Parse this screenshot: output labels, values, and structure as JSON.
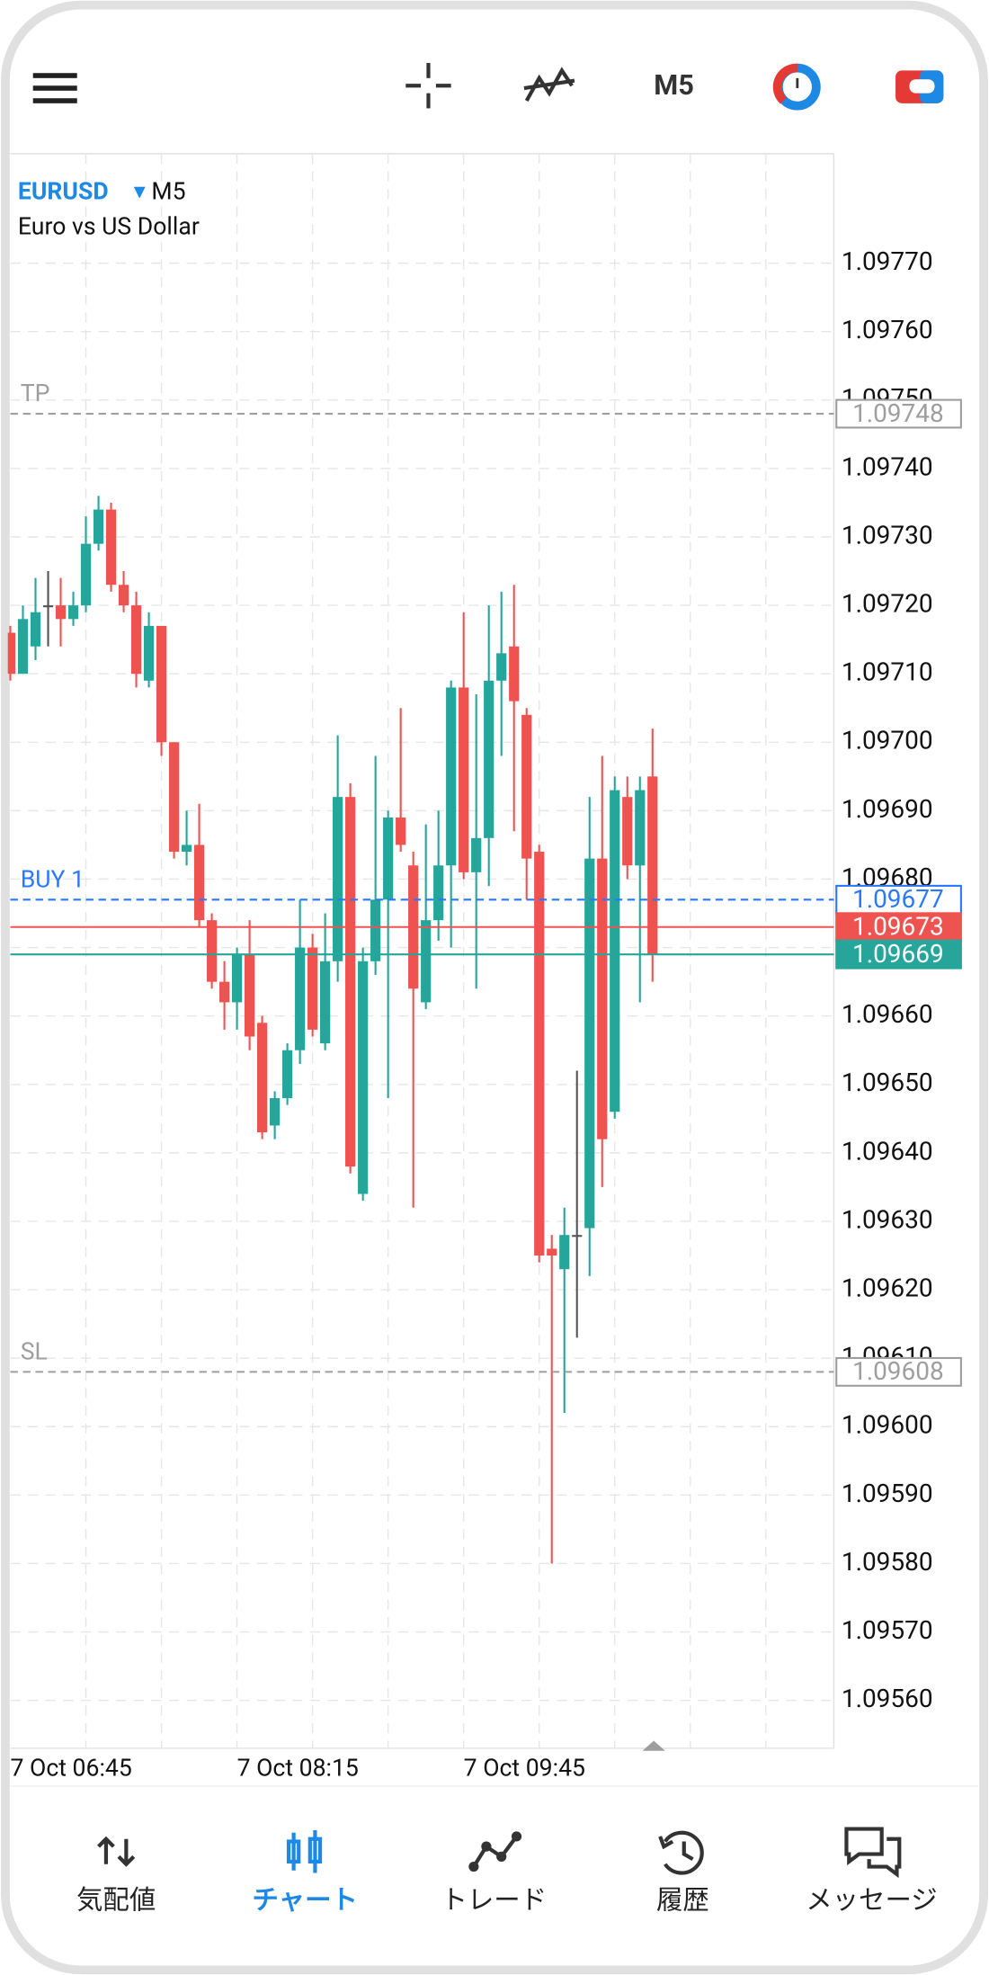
{
  "toolbar": {
    "timeframe": "M5"
  },
  "chart_data": {
    "type": "candlestick",
    "symbol": "EURUSD",
    "timeframe": "M5",
    "description": "Euro vs US Dollar",
    "up_color": "#26a69a",
    "down_color": "#ef5350",
    "doji_color": "#555555",
    "categories": [
      "7 Oct 06:45",
      null,
      null,
      null,
      null,
      null,
      null,
      null,
      null,
      null,
      null,
      null,
      null,
      null,
      null,
      null,
      null,
      null,
      "7 Oct 08:15",
      null,
      null,
      null,
      null,
      null,
      null,
      null,
      null,
      null,
      null,
      null,
      null,
      null,
      null,
      null,
      null,
      null,
      "7 Oct 09:45",
      null,
      null,
      null,
      null,
      null,
      null,
      null,
      null,
      null,
      null,
      null,
      null,
      null,
      null,
      null
    ],
    "open": [
      1.09716,
      1.0971,
      1.09714,
      1.0972,
      1.0972,
      1.09718,
      1.0972,
      1.09729,
      1.09734,
      1.09723,
      1.0972,
      1.09709,
      1.09717,
      1.097,
      1.09684,
      1.09685,
      1.09674,
      1.09665,
      1.09662,
      1.09669,
      1.09659,
      1.09644,
      1.09648,
      1.09655,
      1.0967,
      1.09656,
      1.09668,
      1.09692,
      1.09634,
      1.09668,
      1.09677,
      1.09689,
      1.09682,
      1.09662,
      1.09674,
      1.09682,
      1.09708,
      1.09681,
      1.09686,
      1.09709,
      1.09714,
      1.09704,
      1.09684,
      1.09626,
      1.09623,
      1.09628,
      1.09629,
      1.09683,
      1.09646,
      1.09692,
      1.09682,
      1.09695
    ],
    "high": [
      1.09717,
      1.0972,
      1.09724,
      1.09725,
      1.09724,
      1.09722,
      1.09733,
      1.09736,
      1.09735,
      1.09725,
      1.09722,
      1.09719,
      1.09717,
      1.097,
      1.0969,
      1.09691,
      1.09675,
      1.09668,
      1.0967,
      1.09674,
      1.0966,
      1.09649,
      1.09656,
      1.09677,
      1.09672,
      1.09675,
      1.09701,
      1.09694,
      1.0967,
      1.09698,
      1.0969,
      1.09705,
      1.09684,
      1.09688,
      1.0969,
      1.09709,
      1.09719,
      1.09707,
      1.0972,
      1.09722,
      1.09723,
      1.09705,
      1.09685,
      1.09628,
      1.09632,
      1.09652,
      1.09692,
      1.09698,
      1.09695,
      1.09695,
      1.09695,
      1.09702
    ],
    "low": [
      1.09709,
      1.0971,
      1.09712,
      1.09714,
      1.09714,
      1.09717,
      1.09719,
      1.09728,
      1.09722,
      1.09719,
      1.09708,
      1.09708,
      1.09698,
      1.09683,
      1.09682,
      1.09673,
      1.09664,
      1.09658,
      1.09658,
      1.09655,
      1.09642,
      1.09642,
      1.09647,
      1.09653,
      1.09657,
      1.09655,
      1.09665,
      1.09637,
      1.09633,
      1.09666,
      1.09648,
      1.09684,
      1.09632,
      1.09661,
      1.09671,
      1.0967,
      1.0968,
      1.09664,
      1.09679,
      1.09698,
      1.09687,
      1.09677,
      1.09624,
      1.0958,
      1.09602,
      1.09613,
      1.09622,
      1.09635,
      1.09645,
      1.0968,
      1.09662,
      1.09665
    ],
    "close": [
      1.0971,
      1.09718,
      1.09719,
      1.0972,
      1.09718,
      1.0972,
      1.09729,
      1.09734,
      1.09723,
      1.0972,
      1.0971,
      1.09717,
      1.097,
      1.09684,
      1.09685,
      1.09674,
      1.09665,
      1.09662,
      1.09669,
      1.09657,
      1.09643,
      1.09648,
      1.09655,
      1.0967,
      1.09658,
      1.09668,
      1.09692,
      1.09638,
      1.09668,
      1.09677,
      1.09689,
      1.09685,
      1.09664,
      1.09674,
      1.09682,
      1.09708,
      1.09681,
      1.09686,
      1.09709,
      1.09713,
      1.09706,
      1.09683,
      1.09625,
      1.09625,
      1.09628,
      1.09628,
      1.09683,
      1.09642,
      1.09693,
      1.09682,
      1.09693,
      1.09669
    ],
    "ylim": [
      1.09553,
      1.09786
    ],
    "yticks": [
      {
        "value": 1.0977,
        "label": "1.09770"
      },
      {
        "value": 1.0976,
        "label": "1.09760"
      },
      {
        "value": 1.0975,
        "label": "1.09750"
      },
      {
        "value": 1.0974,
        "label": "1.09740"
      },
      {
        "value": 1.0973,
        "label": "1.09730"
      },
      {
        "value": 1.0972,
        "label": "1.09720"
      },
      {
        "value": 1.0971,
        "label": "1.09710"
      },
      {
        "value": 1.097,
        "label": "1.09700"
      },
      {
        "value": 1.0969,
        "label": "1.09690"
      },
      {
        "value": 1.0968,
        "label": "1.09680"
      },
      {
        "value": 1.0967,
        "label": "1.09670"
      },
      {
        "value": 1.0966,
        "label": "1.09660"
      },
      {
        "value": 1.0965,
        "label": "1.09650"
      },
      {
        "value": 1.0964,
        "label": "1.09640"
      },
      {
        "value": 1.0963,
        "label": "1.09630"
      },
      {
        "value": 1.0962,
        "label": "1.09620"
      },
      {
        "value": 1.0961,
        "label": "1.09610"
      },
      {
        "value": 1.096,
        "label": "1.09600"
      },
      {
        "value": 1.0959,
        "label": "1.09590"
      },
      {
        "value": 1.0958,
        "label": "1.09580"
      },
      {
        "value": 1.0957,
        "label": "1.09570"
      },
      {
        "value": 1.0956,
        "label": "1.09560"
      }
    ],
    "grid": true,
    "levels": [
      {
        "label": "TP",
        "value": 1.09748,
        "color": "#9e9e9e",
        "style": "outline",
        "dashed": true
      },
      {
        "label": "BUY 1",
        "value": 1.09677,
        "color": "#2979ff",
        "style": "outline",
        "dashed": true
      },
      {
        "value": 1.09673,
        "color": "#ef5350",
        "style": "filled",
        "dashed": false
      },
      {
        "value": 1.09669,
        "color": "#26a69a",
        "style": "filled",
        "dashed": false
      },
      {
        "label": "SL",
        "value": 1.09608,
        "color": "#9e9e9e",
        "style": "outline",
        "dashed": true
      }
    ]
  },
  "nav": [
    {
      "label": "気配値",
      "active": false
    },
    {
      "label": "チャート",
      "active": true
    },
    {
      "label": "トレード",
      "active": false
    },
    {
      "label": "履歴",
      "active": false
    },
    {
      "label": "メッセージ",
      "active": false
    }
  ]
}
